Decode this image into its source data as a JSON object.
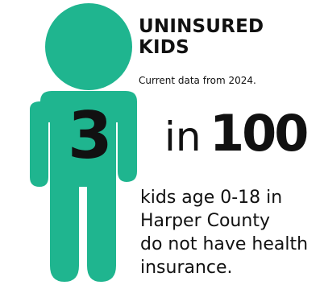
{
  "title": "UNINSURED KIDS",
  "subtitle": "Current data from 2024.",
  "stat": {
    "numerator": "3",
    "connector": "in",
    "denominator": "100"
  },
  "description": {
    "line1": "kids age 0-18 in",
    "line2": "Harper County",
    "line3": "do not have health",
    "line4": "insurance."
  },
  "colors": {
    "figure": "#1fb58f",
    "text": "#111111"
  },
  "icon": "child-figure-icon"
}
